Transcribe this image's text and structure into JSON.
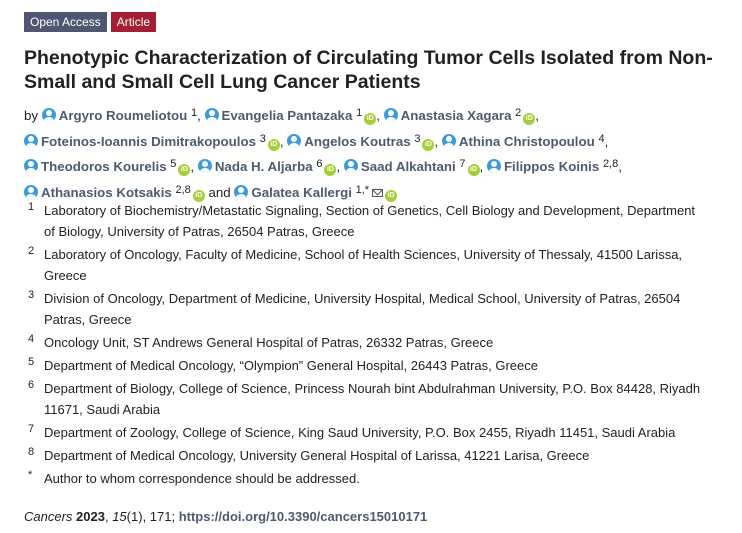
{
  "badges": {
    "open_access": "Open Access",
    "article": "Article"
  },
  "title": "Phenotypic Characterization of Circulating Tumor Cells Isolated from Non-Small and Small Cell Lung Cancer Patients",
  "authors_prefix": "by",
  "authors": [
    {
      "name": "Argyro Roumeliotou",
      "sup": "1",
      "orcid": false,
      "sep": ","
    },
    {
      "name": "Evangelia Pantazaka",
      "sup": "1",
      "orcid": true,
      "sep": ","
    },
    {
      "name": "Anastasia Xagara",
      "sup": "2",
      "orcid": true,
      "sep": ","
    },
    {
      "name": "Foteinos-Ioannis Dimitrakopoulos",
      "sup": "3",
      "orcid": true,
      "sep": ","
    },
    {
      "name": "Angelos Koutras",
      "sup": "3",
      "orcid": true,
      "sep": ","
    },
    {
      "name": "Athina Christopoulou",
      "sup": "4",
      "orcid": false,
      "sep": ","
    },
    {
      "name": "Theodoros Kourelis",
      "sup": "5",
      "orcid": true,
      "sep": ","
    },
    {
      "name": "Nada H. Aljarba",
      "sup": "6",
      "orcid": true,
      "sep": ","
    },
    {
      "name": "Saad Alkahtani",
      "sup": "7",
      "orcid": true,
      "sep": ","
    },
    {
      "name": "Filippos Koinis",
      "sup": "2,8",
      "orcid": false,
      "sep": ","
    },
    {
      "name": "Athanasios Kotsakis",
      "sup": "2,8",
      "orcid": true,
      "sep": "and"
    },
    {
      "name": "Galatea Kallergi",
      "sup": "1,*",
      "orcid": true,
      "mail": true,
      "sep": ""
    }
  ],
  "affiliations": [
    {
      "num": "1",
      "text": "Laboratory of Biochemistry/Metastatic Signaling, Section of Genetics, Cell Biology and Development, Department of Biology, University of Patras, 26504 Patras, Greece"
    },
    {
      "num": "2",
      "text": "Laboratory of Oncology, Faculty of Medicine, School of Health Sciences, University of Thessaly, 41500 Larissa, Greece"
    },
    {
      "num": "3",
      "text": "Division of Oncology, Department of Medicine, University Hospital, Medical School, University of Patras, 26504 Patras, Greece"
    },
    {
      "num": "4",
      "text": "Oncology Unit, ST Andrews General Hospital of Patras, 26332 Patras, Greece"
    },
    {
      "num": "5",
      "text": "Department of Medical Oncology, “Olympion” General Hospital, 26443 Patras, Greece"
    },
    {
      "num": "6",
      "text": "Department of Biology, College of Science, Princess Nourah bint Abdulrahman University, P.O. Box 84428, Riyadh 11671, Saudi Arabia"
    },
    {
      "num": "7",
      "text": "Department of Zoology, College of Science, King Saud University, P.O. Box 2455, Riyadh 11451, Saudi Arabia"
    },
    {
      "num": "8",
      "text": "Department of Medical Oncology, University General Hospital of Larissa, 41221 Larisa, Greece"
    },
    {
      "num": "*",
      "text": "Author to whom correspondence should be addressed."
    }
  ],
  "citation": {
    "journal": "Cancers",
    "year": "2023",
    "volume": "15",
    "issue": "(1)",
    "page": ", 171; ",
    "doi": "https://doi.org/10.3390/cancers15010171"
  }
}
